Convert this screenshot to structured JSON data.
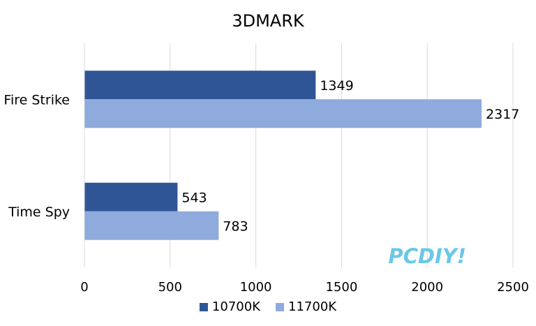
{
  "chart_data": {
    "type": "bar",
    "orientation": "horizontal",
    "title": "3DMARK",
    "xlabel": "",
    "ylabel": "",
    "categories": [
      "Fire Strike",
      "Time Spy"
    ],
    "series": [
      {
        "name": "10700K",
        "values": [
          1349,
          543
        ],
        "color": "#2F5597"
      },
      {
        "name": "11700K",
        "values": [
          2317,
          783
        ],
        "color": "#8FAADC"
      }
    ],
    "xlim": [
      0,
      2500
    ],
    "xticks": [
      0,
      500,
      1000,
      1500,
      2000,
      2500
    ],
    "grid": true,
    "legend_position": "bottom"
  },
  "watermark": {
    "text": "PCDIY!",
    "color": "#6CC7E8"
  },
  "colors": {
    "gridline": "#D9D9D9",
    "axis": "#000000"
  }
}
